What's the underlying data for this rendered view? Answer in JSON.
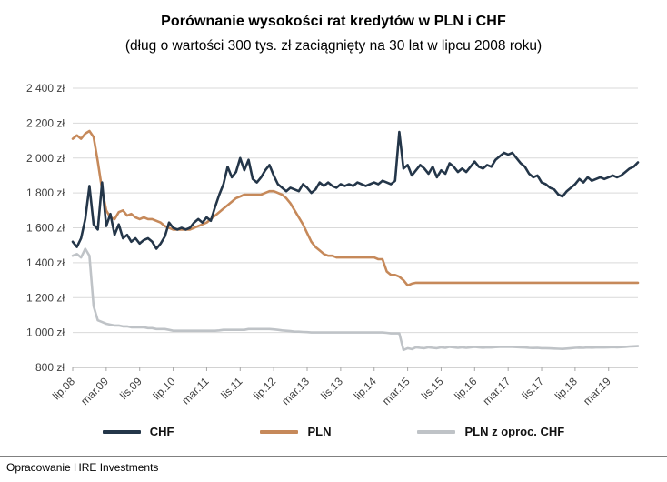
{
  "footer": {
    "text": "Opracowanie HRE Investments"
  },
  "chart_data": {
    "type": "line",
    "title": "Porównanie wysokości rat kredytów w PLN i CHF",
    "subtitle": "(dług o wartości 300 tys. zł zaciągnięty na 30 lat w lipcu 2008 roku)",
    "xlabel": "",
    "ylabel": "",
    "ylim": [
      800,
      2400
    ],
    "ytick_step": 200,
    "ytick_labels": [
      "800 zł",
      "1 000 zł",
      "1 200 zł",
      "1 400 zł",
      "1 600 zł",
      "1 800 zł",
      "2 000 zł",
      "2 200 zł",
      "2 400 zł"
    ],
    "x_tick_labels": [
      "lip.08",
      "mar.09",
      "lis.09",
      "lip.10",
      "mar.11",
      "lis.11",
      "lip.12",
      "mar.13",
      "lis.13",
      "lip.14",
      "mar.15",
      "lis.15",
      "lip.16",
      "mar.17",
      "lis.17",
      "lip.18",
      "mar.19"
    ],
    "x_tick_step_months": 8,
    "x_start": "lip.08",
    "x_frequency": "monthly",
    "grid": true,
    "legend_position": "bottom",
    "series": [
      {
        "name": "CHF",
        "color": "#243649",
        "values": [
          1520,
          1490,
          1540,
          1650,
          1840,
          1620,
          1590,
          1860,
          1610,
          1680,
          1560,
          1620,
          1540,
          1560,
          1520,
          1540,
          1510,
          1530,
          1540,
          1520,
          1480,
          1510,
          1550,
          1630,
          1600,
          1590,
          1600,
          1590,
          1600,
          1630,
          1650,
          1630,
          1660,
          1640,
          1720,
          1790,
          1850,
          1950,
          1890,
          1920,
          2000,
          1930,
          1990,
          1880,
          1860,
          1890,
          1930,
          1960,
          1900,
          1850,
          1830,
          1810,
          1830,
          1820,
          1810,
          1850,
          1830,
          1800,
          1820,
          1860,
          1840,
          1860,
          1840,
          1830,
          1850,
          1840,
          1850,
          1840,
          1860,
          1850,
          1840,
          1850,
          1860,
          1850,
          1870,
          1860,
          1850,
          1870,
          2150,
          1940,
          1960,
          1900,
          1930,
          1960,
          1940,
          1910,
          1950,
          1890,
          1930,
          1910,
          1970,
          1950,
          1920,
          1940,
          1920,
          1950,
          1980,
          1950,
          1940,
          1960,
          1950,
          1990,
          2010,
          2030,
          2020,
          2030,
          2000,
          1970,
          1950,
          1910,
          1890,
          1900,
          1860,
          1850,
          1830,
          1820,
          1790,
          1780,
          1810,
          1830,
          1850,
          1880,
          1860,
          1890,
          1870,
          1880,
          1890,
          1880,
          1890,
          1900,
          1890,
          1900,
          1920,
          1940,
          1950,
          1975
        ]
      },
      {
        "name": "PLN",
        "color": "#c6895a",
        "values": [
          2110,
          2130,
          2110,
          2140,
          2155,
          2120,
          1980,
          1820,
          1700,
          1660,
          1650,
          1690,
          1700,
          1670,
          1680,
          1660,
          1650,
          1660,
          1650,
          1650,
          1640,
          1630,
          1610,
          1600,
          1590,
          1590,
          1590,
          1590,
          1590,
          1600,
          1610,
          1620,
          1630,
          1650,
          1670,
          1690,
          1710,
          1730,
          1750,
          1770,
          1780,
          1790,
          1790,
          1790,
          1790,
          1790,
          1800,
          1810,
          1810,
          1800,
          1790,
          1770,
          1740,
          1700,
          1660,
          1620,
          1570,
          1520,
          1490,
          1470,
          1450,
          1440,
          1440,
          1430,
          1430,
          1430,
          1430,
          1430,
          1430,
          1430,
          1430,
          1430,
          1430,
          1420,
          1420,
          1350,
          1330,
          1330,
          1320,
          1300,
          1270,
          1280,
          1285,
          1285,
          1285,
          1285,
          1285,
          1285,
          1285,
          1285,
          1285,
          1285,
          1285,
          1285,
          1285,
          1285,
          1285,
          1285,
          1285,
          1285,
          1285,
          1285,
          1285,
          1285,
          1285,
          1285,
          1285,
          1285,
          1285,
          1285,
          1285,
          1285,
          1285,
          1285,
          1285,
          1285,
          1285,
          1285,
          1285,
          1285,
          1285,
          1285,
          1285,
          1285,
          1285,
          1285,
          1285,
          1285,
          1285,
          1285,
          1285,
          1285,
          1285,
          1285,
          1285,
          1285
        ]
      },
      {
        "name": "PLN z oproc. CHF",
        "color": "#bfc3c7",
        "values": [
          1440,
          1450,
          1430,
          1480,
          1440,
          1150,
          1070,
          1060,
          1050,
          1045,
          1040,
          1040,
          1035,
          1035,
          1030,
          1030,
          1030,
          1030,
          1025,
          1025,
          1020,
          1020,
          1020,
          1015,
          1010,
          1010,
          1010,
          1010,
          1010,
          1010,
          1010,
          1010,
          1010,
          1010,
          1010,
          1012,
          1015,
          1015,
          1015,
          1015,
          1015,
          1015,
          1020,
          1020,
          1020,
          1020,
          1020,
          1020,
          1018,
          1015,
          1012,
          1010,
          1008,
          1005,
          1005,
          1003,
          1002,
          1000,
          1000,
          1000,
          1000,
          1000,
          1000,
          1000,
          1000,
          1000,
          1000,
          1000,
          1000,
          1000,
          1000,
          1000,
          1000,
          1000,
          1000,
          998,
          995,
          995,
          995,
          900,
          910,
          905,
          915,
          912,
          910,
          915,
          912,
          910,
          915,
          912,
          918,
          915,
          912,
          915,
          912,
          915,
          918,
          915,
          913,
          915,
          914,
          916,
          918,
          918,
          918,
          918,
          916,
          915,
          914,
          912,
          911,
          912,
          910,
          910,
          909,
          908,
          907,
          906,
          908,
          910,
          912,
          913,
          912,
          914,
          913,
          914,
          915,
          914,
          915,
          916,
          915,
          916,
          918,
          920,
          921,
          922
        ]
      }
    ]
  }
}
